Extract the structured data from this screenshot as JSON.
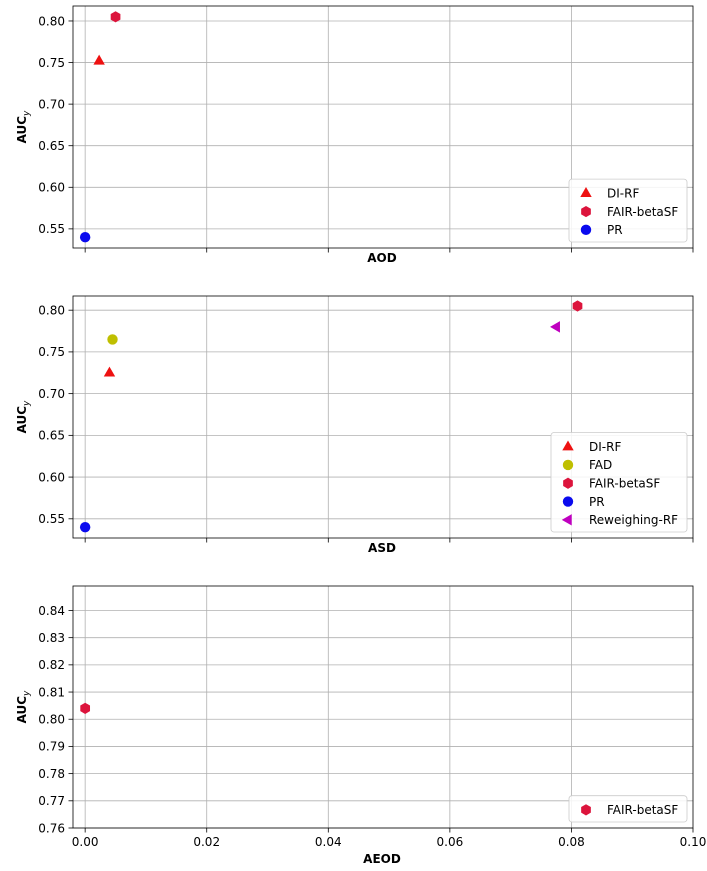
{
  "chart_data": [
    {
      "type": "scatter",
      "xlabel": "AOD",
      "ylabel": "AUC",
      "ylabel_subscript": "y",
      "xlim": [
        -0.002,
        0.1
      ],
      "ylim": [
        0.527,
        0.818
      ],
      "x_tick_labels_shown": false,
      "x_ticks": [
        0.0,
        0.02,
        0.04,
        0.06,
        0.08,
        0.1
      ],
      "y_ticks": [
        0.55,
        0.6,
        0.65,
        0.7,
        0.75,
        0.8
      ],
      "y_tick_labels": [
        "0.55",
        "0.60",
        "0.65",
        "0.70",
        "0.75",
        "0.80"
      ],
      "grid": true,
      "legend_placement": "lower right",
      "series": [
        {
          "name": "DI-RF",
          "marker": "triangle-up",
          "color": "#ee1111",
          "points": [
            {
              "x": 0.0023,
              "y": 0.752
            }
          ]
        },
        {
          "name": "FAIR-betaSF",
          "marker": "hexagon",
          "color": "#dc143c",
          "points": [
            {
              "x": 0.005,
              "y": 0.805
            }
          ]
        },
        {
          "name": "PR",
          "marker": "circle",
          "color": "#0a0aee",
          "points": [
            {
              "x": 0.0,
              "y": 0.54
            }
          ]
        }
      ]
    },
    {
      "type": "scatter",
      "xlabel": "ASD",
      "ylabel": "AUC",
      "ylabel_subscript": "y",
      "xlim": [
        -0.002,
        0.1
      ],
      "ylim": [
        0.527,
        0.817
      ],
      "x_tick_labels_shown": false,
      "x_ticks": [
        0.0,
        0.02,
        0.04,
        0.06,
        0.08,
        0.1
      ],
      "y_ticks": [
        0.55,
        0.6,
        0.65,
        0.7,
        0.75,
        0.8
      ],
      "y_tick_labels": [
        "0.55",
        "0.60",
        "0.65",
        "0.70",
        "0.75",
        "0.80"
      ],
      "grid": true,
      "legend_placement": "lower right",
      "series": [
        {
          "name": "DI-RF",
          "marker": "triangle-up",
          "color": "#ee1111",
          "points": [
            {
              "x": 0.004,
              "y": 0.725
            }
          ]
        },
        {
          "name": "FAD",
          "marker": "circle",
          "color": "#bfbf00",
          "points": [
            {
              "x": 0.0045,
              "y": 0.765
            }
          ]
        },
        {
          "name": "FAIR-betaSF",
          "marker": "hexagon",
          "color": "#dc143c",
          "points": [
            {
              "x": 0.081,
              "y": 0.805
            }
          ]
        },
        {
          "name": "PR",
          "marker": "circle",
          "color": "#0a0aee",
          "points": [
            {
              "x": 0.0,
              "y": 0.54
            }
          ]
        },
        {
          "name": "Reweighing-RF",
          "marker": "triangle-left",
          "color": "#bf00bf",
          "points": [
            {
              "x": 0.0775,
              "y": 0.78
            }
          ]
        }
      ]
    },
    {
      "type": "scatter",
      "xlabel": "AEOD",
      "ylabel": "AUC",
      "ylabel_subscript": "y",
      "xlim": [
        -0.002,
        0.1
      ],
      "ylim": [
        0.76,
        0.849
      ],
      "x_tick_labels_shown": true,
      "x_ticks": [
        0.0,
        0.02,
        0.04,
        0.06,
        0.08,
        0.1
      ],
      "x_tick_labels": [
        "0.00",
        "0.02",
        "0.04",
        "0.06",
        "0.08",
        "0.10"
      ],
      "y_ticks": [
        0.76,
        0.77,
        0.78,
        0.79,
        0.8,
        0.81,
        0.82,
        0.83,
        0.84
      ],
      "y_tick_labels": [
        "0.76",
        "0.77",
        "0.78",
        "0.79",
        "0.80",
        "0.81",
        "0.82",
        "0.83",
        "0.84"
      ],
      "grid": true,
      "legend_placement": "lower right",
      "series": [
        {
          "name": "FAIR-betaSF",
          "marker": "hexagon",
          "color": "#dc143c",
          "points": [
            {
              "x": 0.0,
              "y": 0.804
            }
          ]
        }
      ]
    }
  ]
}
